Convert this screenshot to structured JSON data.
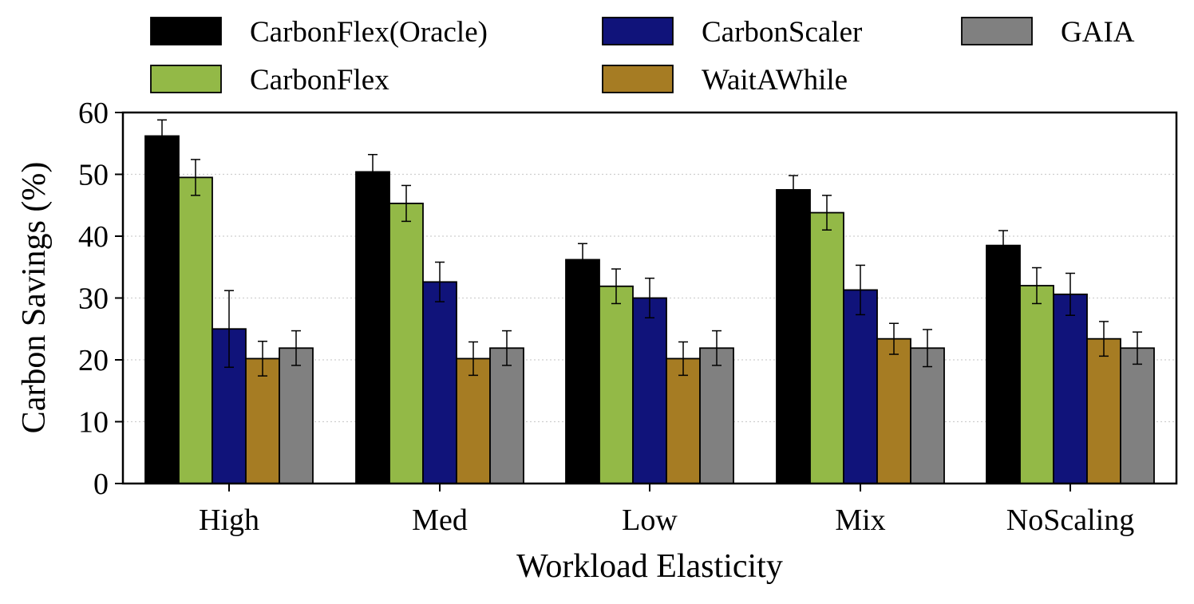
{
  "chart_data": {
    "type": "bar",
    "xlabel": "Workload Elasticity",
    "ylabel": "Carbon Savings (%)",
    "ylim": [
      0,
      60
    ],
    "yticks": [
      "0",
      "10",
      "20",
      "30",
      "40",
      "50",
      "60"
    ],
    "grid": "horizontal dotted",
    "legend_position": "top",
    "categories": [
      "High",
      "Med",
      "Low",
      "Mix",
      "NoScaling"
    ],
    "series": [
      {
        "name": "CarbonFlex(Oracle)",
        "color": "#000000",
        "values": [
          56.2,
          50.4,
          36.2,
          47.5,
          38.5
        ],
        "errors": [
          2.6,
          2.8,
          2.6,
          2.3,
          2.4
        ]
      },
      {
        "name": "CarbonFlex",
        "color": "#93B947",
        "values": [
          49.5,
          45.3,
          31.9,
          43.8,
          32.0
        ],
        "errors": [
          2.9,
          2.9,
          2.8,
          2.8,
          2.9
        ]
      },
      {
        "name": "CarbonScaler",
        "color": "#10137A",
        "values": [
          25.0,
          32.6,
          30.0,
          31.3,
          30.6
        ],
        "errors": [
          6.2,
          3.2,
          3.2,
          4.0,
          3.4
        ]
      },
      {
        "name": "WaitAWhile",
        "color": "#A67C23",
        "values": [
          20.2,
          20.2,
          20.2,
          23.4,
          23.4
        ],
        "errors": [
          2.8,
          2.7,
          2.7,
          2.5,
          2.8
        ]
      },
      {
        "name": "GAIA",
        "color": "#808080",
        "values": [
          21.9,
          21.9,
          21.9,
          21.9,
          21.9
        ],
        "errors": [
          2.8,
          2.8,
          2.8,
          3.0,
          2.6
        ]
      }
    ]
  }
}
